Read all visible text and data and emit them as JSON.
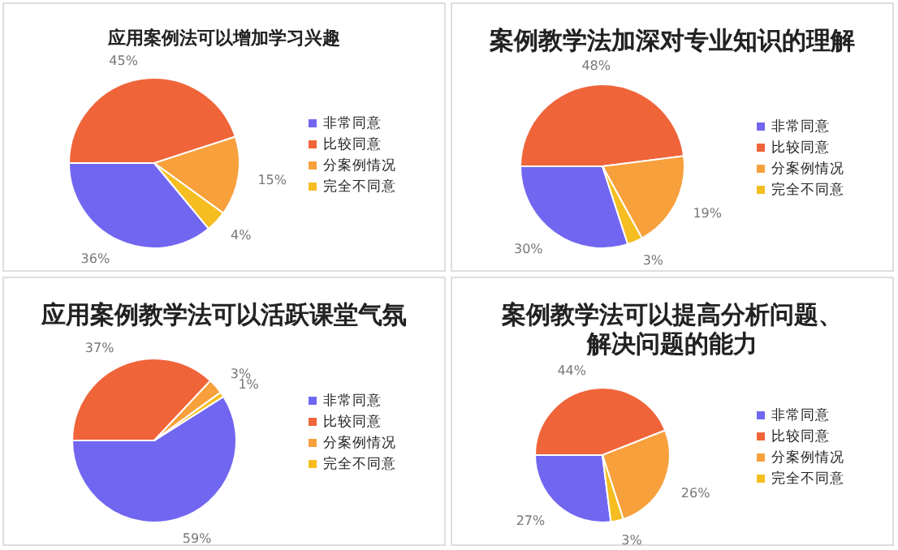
{
  "chart_data": [
    {
      "type": "pie",
      "title": "应用案例法可以增加学习兴趣",
      "categories": [
        "非常同意",
        "比较同意",
        "分案例情况",
        "完全不同意"
      ],
      "values": [
        36,
        45,
        15,
        4
      ],
      "colors": [
        "#7166f0",
        "#f0643a",
        "#f7a03c",
        "#f5bd1f"
      ],
      "value_labels": [
        "36%",
        "45%",
        "15%",
        "4%"
      ],
      "legend": "right"
    },
    {
      "type": "pie",
      "title": "案例教学法加深对专业知识的理解",
      "categories": [
        "非常同意",
        "比较同意",
        "分案例情况",
        "完全不同意"
      ],
      "values": [
        30,
        48,
        19,
        3
      ],
      "colors": [
        "#7166f0",
        "#f0643a",
        "#f7a03c",
        "#f5bd1f"
      ],
      "value_labels": [
        "30%",
        "48%",
        "19%",
        "3%"
      ],
      "legend": "right"
    },
    {
      "type": "pie",
      "title": "应用案例教学法可以活跃课堂气氛",
      "categories": [
        "非常同意",
        "比较同意",
        "分案例情况",
        "完全不同意"
      ],
      "values": [
        59,
        37,
        3,
        1
      ],
      "colors": [
        "#7166f0",
        "#f0643a",
        "#f7a03c",
        "#f5bd1f"
      ],
      "value_labels": [
        "59%",
        "37%",
        "3%",
        "1%"
      ],
      "legend": "right"
    },
    {
      "type": "pie",
      "title": "案例教学法可以提高分析问题、解决问题的能力",
      "categories": [
        "非常同意",
        "比较同意",
        "分案例情况",
        "完全不同意"
      ],
      "values": [
        27,
        44,
        26,
        3
      ],
      "colors": [
        "#7166f0",
        "#f0643a",
        "#f7a03c",
        "#f5bd1f"
      ],
      "value_labels": [
        "27%",
        "44%",
        "26%",
        "3%"
      ],
      "legend": "right"
    }
  ]
}
